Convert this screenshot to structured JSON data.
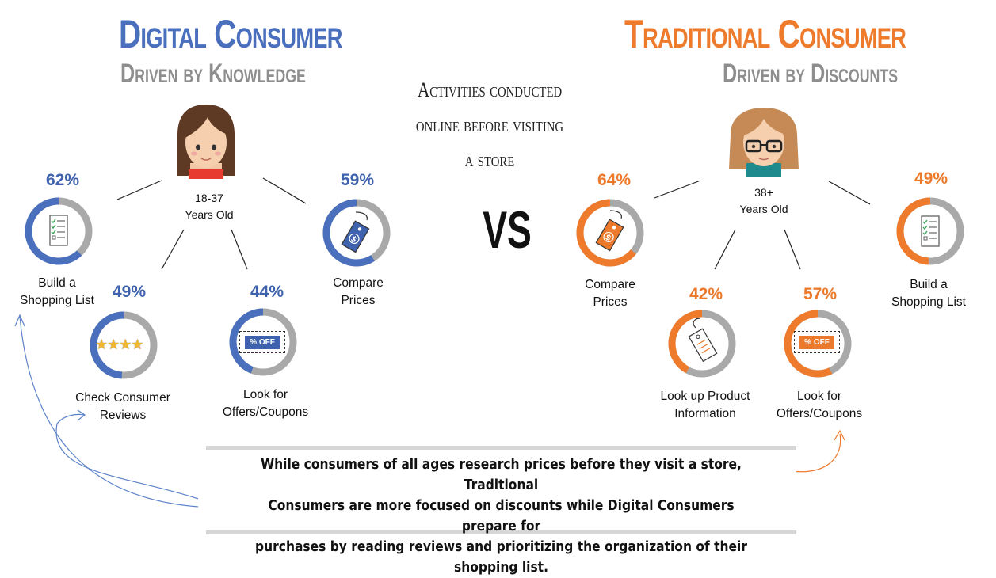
{
  "digital": {
    "title": "Digital Consumer",
    "subtitle": "Driven by Knowledge",
    "age": "18-37",
    "age_suffix": "Years Old",
    "color": "#4a6fbd",
    "items": [
      {
        "pct": "62%",
        "value": 62,
        "label1": "Build a",
        "label2": "Shopping List",
        "icon": "checklist-icon"
      },
      {
        "pct": "49%",
        "value": 49,
        "label1": "Check Consumer",
        "label2": "Reviews",
        "icon": "stars-icon"
      },
      {
        "pct": "44%",
        "value": 44,
        "label1": "Look for",
        "label2": "Offers/Coupons",
        "icon": "coupon-icon"
      },
      {
        "pct": "59%",
        "value": 59,
        "label1": "Compare",
        "label2": "Prices",
        "icon": "price-tag-icon"
      }
    ]
  },
  "traditional": {
    "title": "Traditional Consumer",
    "subtitle": "Driven by Discounts",
    "age": "38+",
    "age_suffix": "Years Old",
    "color": "#ee7a2c",
    "items": [
      {
        "pct": "64%",
        "value": 64,
        "label1": "Compare",
        "label2": "Prices",
        "icon": "price-tag-icon"
      },
      {
        "pct": "42%",
        "value": 42,
        "label1": "Look up Product",
        "label2": "Information",
        "icon": "product-tag-icon"
      },
      {
        "pct": "57%",
        "value": 57,
        "label1": "Look for",
        "label2": "Offers/Coupons",
        "icon": "coupon-icon"
      },
      {
        "pct": "49%",
        "value": 49,
        "label1": "Build a",
        "label2": "Shopping List",
        "icon": "checklist-icon"
      }
    ]
  },
  "center": {
    "line1": "Activities conducted",
    "line2": "online before visiting",
    "line3": "a store",
    "vs": "VS"
  },
  "coupon_text": "% OFF",
  "summary": {
    "line1": "While consumers of all ages research prices before they visit a store, Traditional",
    "line2": "Consumers are more focused on discounts while Digital Consumers prepare for",
    "line3": "purchases by reading reviews and prioritizing the organization of their shopping list."
  },
  "ring_gray": "#a9a9a9"
}
